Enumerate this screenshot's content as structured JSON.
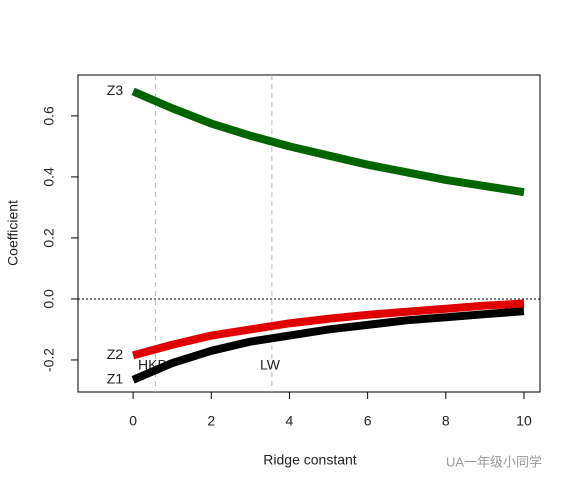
{
  "chart_data": {
    "type": "line",
    "x_label": "Ridge constant",
    "y_label": "Coefficient",
    "x": [
      0,
      1,
      2,
      3,
      4,
      5,
      6,
      7,
      8,
      9,
      10
    ],
    "series": [
      {
        "name": "Z1",
        "color": "#000000",
        "values": [
          -0.265,
          -0.21,
          -0.17,
          -0.14,
          -0.12,
          -0.1,
          -0.085,
          -0.07,
          -0.06,
          -0.05,
          -0.04
        ]
      },
      {
        "name": "Z2",
        "color": "#e00000",
        "values": [
          -0.185,
          -0.15,
          -0.12,
          -0.1,
          -0.08,
          -0.065,
          -0.052,
          -0.042,
          -0.032,
          -0.022,
          -0.015
        ]
      },
      {
        "name": "Z3",
        "color": "#006400",
        "values": [
          0.68,
          0.625,
          0.575,
          0.535,
          0.5,
          0.47,
          0.44,
          0.415,
          0.39,
          0.37,
          0.35
        ]
      }
    ],
    "reference_lines": [
      {
        "label": "HKB",
        "x": 0.57
      },
      {
        "label": "LW",
        "x": 3.55
      }
    ],
    "hline": 0,
    "xlim": [
      -1.41,
      10.41
    ],
    "ylim": [
      -0.305,
      0.734
    ],
    "xticks": [
      0,
      2,
      4,
      6,
      8,
      10
    ],
    "yticks": [
      -0.2,
      {
        "value": 0,
        "label": "0.0"
      },
      0.2,
      0.4,
      0.6
    ],
    "watermark": "UA一年级小同学"
  }
}
